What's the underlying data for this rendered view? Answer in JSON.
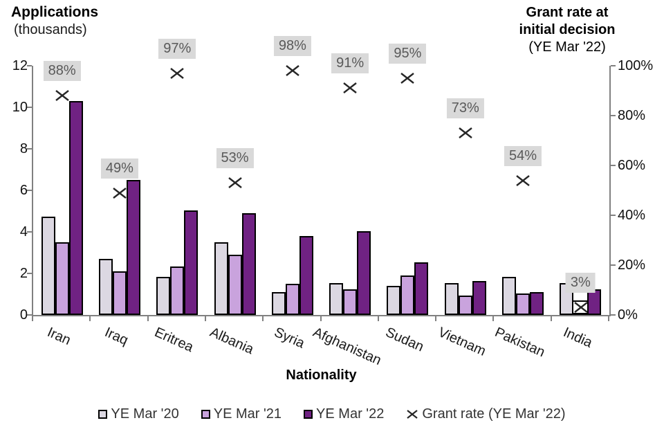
{
  "header": {
    "left_title": "Applications",
    "left_subtitle": "(thousands)",
    "right_title_line1": "Grant rate at",
    "right_title_line2": "initial decision",
    "right_title_line3": "(YE Mar '22)"
  },
  "chart_data": {
    "type": "bar",
    "categories": [
      "Iran",
      "Iraq",
      "Eritrea",
      "Albania",
      "Syria",
      "Afghanistan",
      "Sudan",
      "Vietnam",
      "Pakistan",
      "India"
    ],
    "series": [
      {
        "name": "YE Mar '20",
        "color": "#dcd8e2",
        "values": [
          4.75,
          2.7,
          1.85,
          3.5,
          1.1,
          1.55,
          1.4,
          1.55,
          1.85,
          1.55
        ]
      },
      {
        "name": "YE Mar '21",
        "color": "#c9a3dd",
        "values": [
          3.5,
          2.1,
          2.35,
          2.9,
          1.5,
          1.25,
          1.9,
          0.95,
          1.05,
          0.35
        ]
      },
      {
        "name": "YE Mar '22",
        "color": "#702283",
        "values": [
          10.3,
          6.5,
          5.05,
          4.9,
          3.8,
          4.05,
          2.55,
          1.65,
          1.1,
          1.25
        ]
      }
    ],
    "scatter_overlay": {
      "name": "Grant rate (YE Mar '22)",
      "marker": "x",
      "values": [
        88,
        49,
        97,
        53,
        98,
        91,
        95,
        73,
        54,
        3
      ],
      "labels": [
        "88%",
        "49%",
        "97%",
        "53%",
        "98%",
        "91%",
        "95%",
        "73%",
        "54%",
        "3%"
      ]
    },
    "xlabel": "Nationality",
    "ylabel": "Applications (thousands)",
    "y2label": "Grant rate at initial decision (YE Mar '22)",
    "ylim": [
      0,
      12
    ],
    "y2lim": [
      0,
      100
    ],
    "y_ticks": [
      "0",
      "2",
      "4",
      "6",
      "8",
      "10",
      "12"
    ],
    "y2_ticks": [
      "0%",
      "20%",
      "40%",
      "60%",
      "80%",
      "100%"
    ],
    "grid": false,
    "legend_position": "bottom",
    "colors": {
      "axis": "#808080",
      "marker": "#262626",
      "rate_label_bg": "#d9d9d9",
      "rate_label_text": "#595959"
    }
  }
}
